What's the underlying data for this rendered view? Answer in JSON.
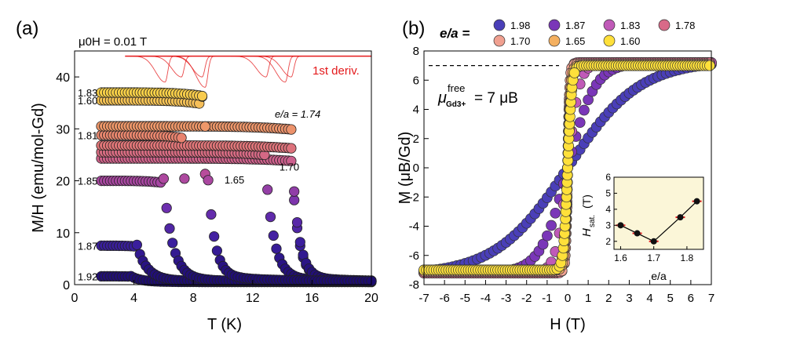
{
  "chart_data": [
    {
      "panel": "(a)",
      "type": "scatter",
      "field_label": "μ0H = 0.01 T",
      "xlabel": "T (K)",
      "ylabel": "M/H (emu/mol-Gd)",
      "xlim": [
        0,
        20
      ],
      "ylim": [
        0,
        45
      ],
      "xticks": [
        0,
        4,
        8,
        12,
        16,
        20
      ],
      "yticks": [
        0,
        10,
        20,
        30,
        40
      ],
      "deriv_label": "1st deriv.",
      "annotation": "e/a = 1.74",
      "colors": {
        "deriv": "#e41a1c",
        "low": "#1a0a6b",
        "high": "#ffea2e"
      },
      "series": [
        {
          "name": "1.83",
          "plateau": 37.0,
          "tc": 8.7,
          "fall": 0.45,
          "tail": 0.5,
          "tmax": 8.8,
          "x_end": 20,
          "label": "1.83",
          "label_side": "left"
        },
        {
          "name": "1.60",
          "plateau": 35.5,
          "tc": 8.6,
          "fall": 0.35,
          "tail": 0.5,
          "tmax": 8.8,
          "x_end": 8.8,
          "label": "1.60",
          "label_side": "left"
        },
        {
          "name": "1.74",
          "plateau": 30.5,
          "tc": 14.6,
          "fall": 0.25,
          "tail": 0.5,
          "tmax": 14.5,
          "x_end": 14.6,
          "label": "",
          "label_side": "none"
        },
        {
          "name": "1.81",
          "plateau": 28.8,
          "tc": 7.3,
          "fall": 0.25,
          "tail": 0.5,
          "tmax": 7.4,
          "x_end": 7.5,
          "label": "1.81",
          "label_side": "left"
        },
        {
          "name": "1.70",
          "plateau": 26.8,
          "tc": 14.6,
          "fall": 0.45,
          "tail": 0.5,
          "tmax": 14.8,
          "x_end": 20,
          "label": "1.70",
          "label_side": "right"
        },
        {
          "name": "1.78",
          "plateau": 25.5,
          "tc": 12.8,
          "fall": 0.55,
          "tail": 0.5,
          "tmax": 13.0,
          "x_end": 20,
          "label": "",
          "label_side": "none"
        },
        {
          "name": "1.65",
          "plateau": 24.3,
          "tc": 14.6,
          "fall": 0.45,
          "tail": 0.5,
          "tmax": 14.6,
          "x_end": 20,
          "label": "1.65",
          "label_side": "right"
        },
        {
          "name": "1.85",
          "plateau": 20.0,
          "tc": 6.0,
          "fall": 0.6,
          "tail": 0.5,
          "tmax": 5.0,
          "x_end": 20,
          "label": "1.85",
          "label_side": "left"
        },
        {
          "name": "1.87",
          "plateau": 7.5,
          "tc": 4.2,
          "fall": 0.7,
          "tail": 0.6,
          "tmax": 3.2,
          "x_end": 20,
          "label": "1.87",
          "label_side": "left"
        },
        {
          "name": "1.92",
          "plateau": 1.6,
          "tc": 3.8,
          "fall": 0.7,
          "tail": 0.5,
          "tmax": 3.5,
          "x_end": 20,
          "label": "1.92",
          "label_side": "left"
        }
      ],
      "derivative_peaks_K": [
        6.1,
        7.2,
        8.6,
        8.8,
        12.9,
        14.2,
        14.6
      ]
    },
    {
      "panel": "(b)",
      "type": "scatter",
      "xlabel": "H (T)",
      "ylabel": "M (μB/Gd)",
      "xlim": [
        -7,
        7
      ],
      "ylim": [
        -8,
        8
      ],
      "xticks": [
        -7,
        -6,
        -5,
        -4,
        -3,
        -2,
        -1,
        0,
        1,
        2,
        3,
        4,
        5,
        6,
        7
      ],
      "yticks": [
        -8,
        -6,
        -4,
        -2,
        0,
        2,
        4,
        6,
        8
      ],
      "legend_title": "e/a =",
      "legend": [
        "1.98",
        "1.87",
        "1.83",
        "1.78",
        "1.70",
        "1.65",
        "1.60"
      ],
      "legend_colors": [
        "#4a3fb8",
        "#7a37b8",
        "#c05ab8",
        "#d86a88",
        "#f0a090",
        "#f4b060",
        "#ffe03a"
      ],
      "saturation_line": 7,
      "annotation_main": "μ",
      "annotation_sup": "free",
      "annotation_sub": "Gd3+",
      "annotation_rhs": "= 7 μB",
      "series": [
        {
          "name": "1.98",
          "msat": 7.0,
          "h0": 3.5
        },
        {
          "name": "1.87",
          "msat": 7.2,
          "h0": 1.3
        },
        {
          "name": "1.83",
          "msat": 7.2,
          "h0": 0.55
        },
        {
          "name": "1.78",
          "msat": 7.2,
          "h0": 0.12
        },
        {
          "name": "1.70",
          "msat": 7.1,
          "h0": 0.1
        },
        {
          "name": "1.65",
          "msat": 7.0,
          "h0": 0.15
        },
        {
          "name": "1.60",
          "msat": 7.0,
          "h0": 0.2
        }
      ]
    },
    {
      "panel": "(b) inset",
      "type": "line",
      "xlabel": "e/a",
      "ylabel_main": "H",
      "ylabel_sub": "sat.",
      "ylabel_unit": "(T)",
      "x": [
        1.6,
        1.65,
        1.7,
        1.78,
        1.83
      ],
      "y": [
        3.0,
        2.5,
        2.0,
        3.5,
        4.5
      ],
      "xlim": [
        1.58,
        1.85
      ],
      "ylim": [
        1.5,
        6
      ],
      "xticks": [
        1.6,
        1.7,
        1.8
      ],
      "yticks": [
        2,
        3,
        4,
        5,
        6
      ],
      "background": "#fbf6d8"
    }
  ]
}
